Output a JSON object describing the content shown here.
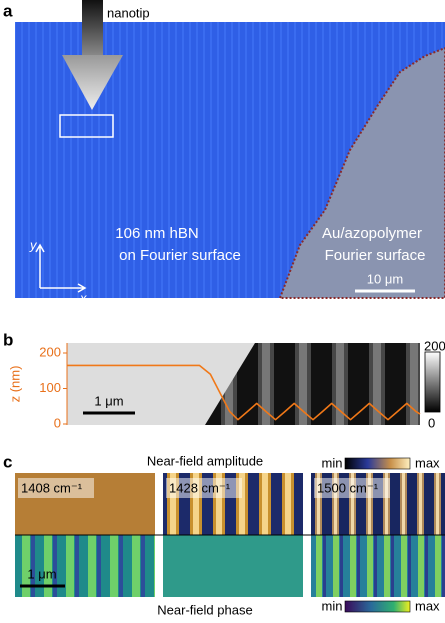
{
  "panel_a": {
    "label": "a",
    "arrow_label": "nanotip",
    "region_left": [
      "106 nm hBN",
      "on Fourier surface"
    ],
    "region_right": [
      "Au/azopolymer",
      "Fourier surface"
    ],
    "axis_y": "y",
    "axis_x": "x",
    "scale_bar": "10 μm"
  },
  "panel_b": {
    "label": "b",
    "y_axis_label": "z (nm)",
    "ylim": [
      0,
      200
    ],
    "yticks": [
      0,
      100,
      200
    ],
    "xlim": [
      0,
      6.4
    ],
    "profile": {
      "x": [
        0,
        2.4,
        2.6,
        2.8,
        2.95,
        3.1,
        3.27,
        3.44,
        3.61,
        3.78,
        3.95,
        4.12,
        4.29,
        4.46,
        4.63,
        4.8,
        4.97,
        5.14,
        5.31,
        5.48,
        5.65,
        5.82,
        5.99,
        6.16,
        6.33,
        6.4
      ],
      "z": [
        165,
        165,
        140,
        80,
        35,
        12,
        35,
        58,
        35,
        12,
        35,
        58,
        35,
        12,
        35,
        58,
        35,
        12,
        35,
        58,
        35,
        12,
        35,
        58,
        35,
        28
      ]
    },
    "scale_bar": "1 μm",
    "colorbar_ticks": [
      200,
      0
    ]
  },
  "panel_c": {
    "label": "c",
    "amplitude_title": "Near-field amplitude",
    "phase_title": "Near-field phase",
    "amplitude_colorbar": [
      "min",
      "max"
    ],
    "phase_colorbar": [
      "min",
      "max"
    ],
    "frequencies": [
      "1408 cm⁻¹",
      "1428 cm⁻¹",
      "1500 cm⁻¹"
    ],
    "scale_bar": "1 μm"
  }
}
